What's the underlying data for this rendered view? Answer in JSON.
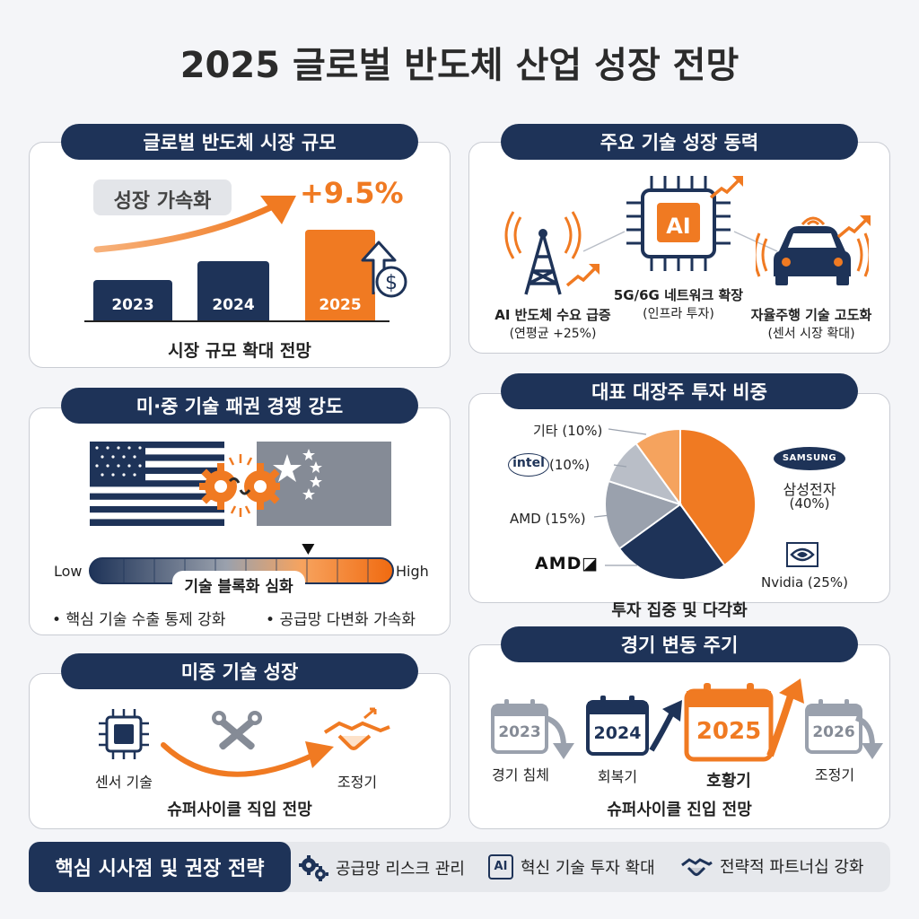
{
  "title": "2025 글로벌 반도체 산업 성장 전망",
  "market": {
    "header": "글로벌 반도체 시장 규모",
    "badge": "성장 가속화",
    "growth": "+9.5%",
    "bars": [
      {
        "year": "2023",
        "relative_height": 0.36
      },
      {
        "year": "2024",
        "relative_height": 0.52
      },
      {
        "year": "2025",
        "relative_height": 0.8
      }
    ],
    "caption": "시장 규모 확대 전망",
    "currency_symbol": "$"
  },
  "drivers": {
    "header": "주요 기술 성장 동력",
    "chip_label": "AI",
    "items": [
      {
        "title": "AI 반도체 수요 급증",
        "sub": "(연평균 +25%)"
      },
      {
        "title": "5G/6G 네트워크 확장",
        "sub": "(인프라 투자)"
      },
      {
        "title": "자율주행 기술 고도화",
        "sub": "(센서 시장 확대)"
      }
    ]
  },
  "rivalry": {
    "header": "미·중 기술 패권 경쟁 강도",
    "scale_low": "Low",
    "scale_high": "High",
    "scale_label": "기술 블록화 심화",
    "scale_level": 0.72,
    "bullets": [
      "핵심 기술 수출 통제 강화",
      "공급망 다변화 가속화"
    ]
  },
  "investment": {
    "header": "대표 대장주 투자 비중",
    "caption": "투자 집중 및 다각화",
    "logos": {
      "samsung": "SAMSUNG",
      "intel": "intel",
      "amd": "AMD"
    }
  },
  "chart_data": {
    "type": "pie",
    "categories": [
      "삼성전자",
      "Nvidia",
      "AMD",
      "intel",
      "기타"
    ],
    "values": [
      40,
      25,
      15,
      10,
      10
    ],
    "labels": [
      "삼성전자",
      "(40%)",
      "Nvidia (25%)",
      "AMD (15%)",
      "(10%)",
      "기타 (10%)"
    ],
    "colors": [
      "#f07a22",
      "#1e3358",
      "#9aa1ad",
      "#b9bec7",
      "#f5a35e"
    ]
  },
  "tech_growth": {
    "header": "미중 기술 성장",
    "left_label": "센서 기술",
    "right_label": "조정기",
    "caption": "슈퍼사이클 직입 전망"
  },
  "cycle": {
    "header": "경기 변동 주기",
    "items": [
      {
        "year": "2023",
        "label": "경기 침체"
      },
      {
        "year": "2024",
        "label": "회복기"
      },
      {
        "year": "2025",
        "label": "호황기"
      },
      {
        "year": "2026",
        "label": "조정기"
      }
    ],
    "caption": "슈퍼사이클 진입 전망"
  },
  "bottom": {
    "header": "핵심 시사점 및 권장 전략",
    "ai_icon_label": "AI",
    "strategies": [
      "공급망 리스크 관리",
      "혁신 기술 투자 확대",
      "전략적 파트너십 강화"
    ]
  }
}
